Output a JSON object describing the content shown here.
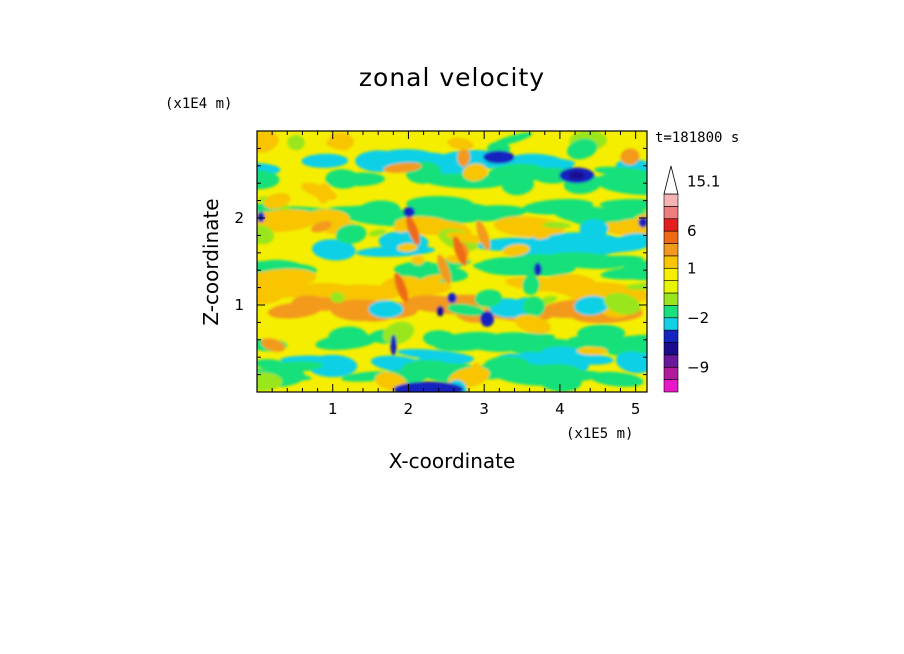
{
  "chart_data": {
    "type": "heatmap",
    "title": "zonal velocity",
    "xlabel": "X-coordinate",
    "ylabel": "Z-coordinate",
    "x_multiplier": "(x1E5 m)",
    "y_multiplier": "(x1E4 m)",
    "time_label": "t=181800 s",
    "xlim": [
      0,
      5.15
    ],
    "ylim": [
      0,
      3.0
    ],
    "x_ticks": [
      "1",
      "2",
      "3",
      "4",
      "5"
    ],
    "x_tick_values": [
      1,
      2,
      3,
      4,
      5
    ],
    "y_ticks": [
      "1",
      "2"
    ],
    "y_tick_values": [
      1,
      2
    ],
    "colorbar": {
      "levels": [
        -12,
        -10.5,
        -9,
        -7.5,
        -6,
        -4.5,
        -2,
        -1,
        0,
        0.5,
        1,
        2,
        4,
        6,
        8,
        10,
        12.5,
        15.1
      ],
      "labels": [
        "15.1",
        "6",
        "1",
        "−2",
        "−9"
      ],
      "label_values": [
        15.1,
        6,
        1,
        -2,
        -9
      ],
      "colors_bottom_to_top": [
        "#e817c8",
        "#b01a9c",
        "#6a189c",
        "#1a0e8c",
        "#1424bf",
        "#11d0e6",
        "#18e07a",
        "#9ae61e",
        "#e8f400",
        "#f5ee00",
        "#f8c500",
        "#f39a1e",
        "#ef6a16",
        "#e41e1e",
        "#ef7d7d",
        "#f5b3b3",
        "#ffffff"
      ]
    }
  }
}
